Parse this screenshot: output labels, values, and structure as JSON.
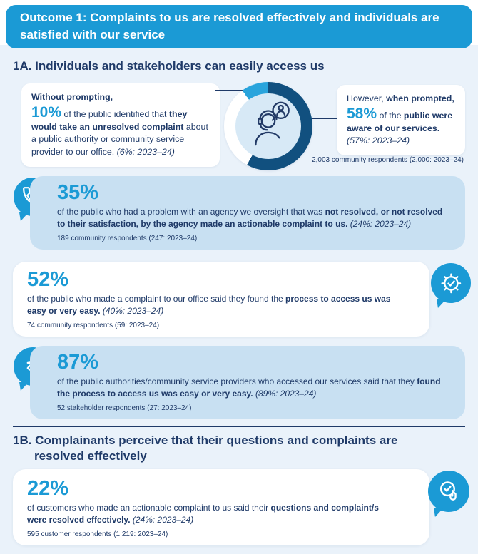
{
  "colors": {
    "accent_blue": "#1B9AD5",
    "navy_text": "#1F3A68",
    "donut_dark": "#11507F",
    "donut_light": "#29A4DC",
    "card_light_blue": "#C8E0F2",
    "page_background": "#EAF2FA"
  },
  "header": {
    "title": "Outcome 1: Complaints to us are resolved effectively and individuals are satisfied with our service"
  },
  "section_1a": {
    "heading": "1A. Individuals and stakeholders can easily access us",
    "left_bubble": [
      {
        "t": "Without prompting,",
        "c": "b"
      },
      {
        "br": true
      },
      {
        "t": "10%",
        "c": "pct-inline"
      },
      {
        "t": " of the public identified that "
      },
      {
        "t": "they would take an unresolved complaint",
        "c": "b"
      },
      {
        "t": " about a public authority or community service provider to our office. "
      },
      {
        "t": "(6%: 2023–24)",
        "c": "i"
      }
    ],
    "right_bubble": [
      {
        "t": "However, "
      },
      {
        "t": "when prompted,",
        "c": "b"
      },
      {
        "br": true
      },
      {
        "t": "58%",
        "c": "pct-inline"
      },
      {
        "t": " of the "
      },
      {
        "t": "public were aware of our services.",
        "c": "b"
      },
      {
        "br": true
      },
      {
        "t": "(57%: 2023–24)",
        "c": "i"
      }
    ],
    "respondents": "2,003 community respondents (2,000: 2023–24)"
  },
  "chart_data": {
    "type": "pie",
    "title": "Public awareness of our office (donut)",
    "slices": [
      {
        "label": "Identified our office without prompting",
        "value": 10,
        "color": "#29A4DC"
      },
      {
        "label": "Aware of our services when prompted",
        "value": 58,
        "color": "#11507F"
      },
      {
        "label": "Remainder",
        "value": 32,
        "color": "#FFFFFF"
      }
    ],
    "center_icon": "operator-headset-icon"
  },
  "cards": [
    {
      "pct": "35%",
      "icon": "phone-chat-icon",
      "body": [
        {
          "t": "of the public who had a problem with an agency we oversight that was "
        },
        {
          "t": "not resolved, or not resolved to their satisfaction, by the agency made an actionable complaint to us.",
          "c": "b"
        },
        {
          "t": " "
        },
        {
          "t": "(24%: 2023–24)",
          "c": "i"
        }
      ],
      "respondents": "189 community respondents (247: 2023–24)"
    },
    {
      "pct": "52%",
      "icon": "gear-check-icon",
      "body": [
        {
          "t": "of the public who made a complaint to our office said they found the "
        },
        {
          "t": "process to access us was easy or very easy.",
          "c": "b"
        },
        {
          "t": " "
        },
        {
          "t": "(40%: 2023–24)",
          "c": "i"
        }
      ],
      "respondents": "74 community respondents (59: 2023–24)"
    },
    {
      "pct": "87%",
      "icon": "cursor-spark-icon",
      "body": [
        {
          "t": "of the public authorities/community service providers who accessed our services said that they "
        },
        {
          "t": "found the process to access us was easy or very easy.",
          "c": "b"
        },
        {
          "t": " "
        },
        {
          "t": "(89%: 2023–24)",
          "c": "i"
        }
      ],
      "respondents": "52 stakeholder respondents (27: 2023–24)"
    },
    {
      "pct": "22%",
      "icon": "check-hand-icon",
      "body": [
        {
          "t": "of customers who made an actionable complaint to us said their "
        },
        {
          "t": "questions and complaint/s were resolved effectively.",
          "c": "b"
        },
        {
          "t": " "
        },
        {
          "t": "(24%: 2023–24)",
          "c": "i"
        }
      ],
      "respondents": "595 customer respondents (1,219: 2023–24)"
    }
  ],
  "section_1b": {
    "heading_line1": "1B. Complainants perceive that their questions and complaints are",
    "heading_line2": "resolved effectively"
  }
}
